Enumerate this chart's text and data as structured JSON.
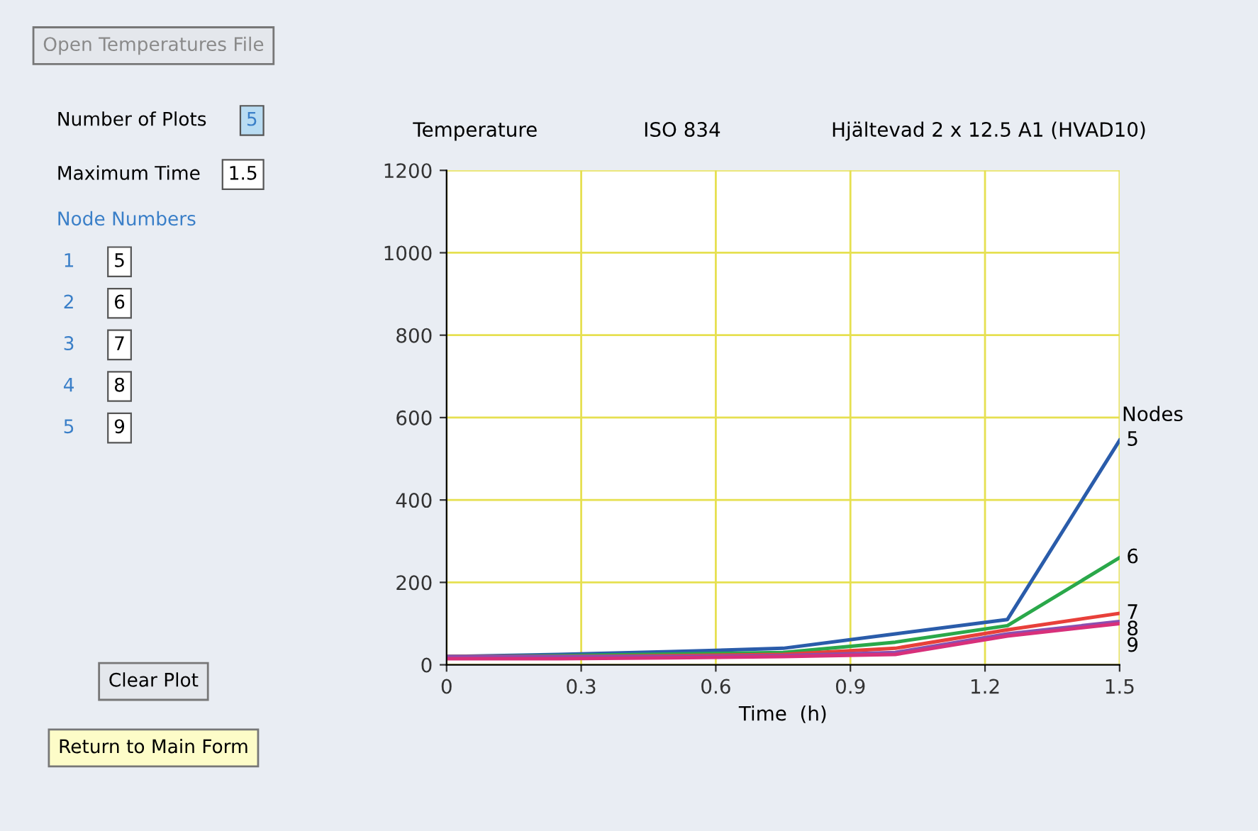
{
  "chart_data": {
    "type": "line",
    "title": "ISO 834",
    "subtitle": "Hjältevad 2 x 12.5 A1 (HVAD10)",
    "ylabel": "Temperature",
    "xlabel": "Time  (h)",
    "legend_title": "Nodes",
    "x": [
      0,
      0.25,
      0.5,
      0.75,
      1.0,
      1.25,
      1.5
    ],
    "series": [
      {
        "name": "5",
        "color": "#2a5caa",
        "values": [
          20,
          25,
          32,
          40,
          75,
          110,
          545
        ]
      },
      {
        "name": "6",
        "color": "#2aa84a",
        "values": [
          20,
          22,
          26,
          30,
          55,
          95,
          260
        ]
      },
      {
        "name": "7",
        "color": "#e8403a",
        "values": [
          20,
          20,
          22,
          25,
          40,
          85,
          125
        ]
      },
      {
        "name": "8",
        "color": "#8a4fb0",
        "values": [
          20,
          20,
          20,
          22,
          30,
          75,
          105
        ]
      },
      {
        "name": "9",
        "color": "#d8307a",
        "values": [
          15,
          15,
          17,
          20,
          25,
          70,
          100
        ]
      }
    ],
    "xlim": [
      0,
      1.5
    ],
    "xticks": [
      0,
      0.3,
      0.6,
      0.9,
      1.2,
      1.5
    ],
    "ylim": [
      0,
      1200
    ],
    "yticks": [
      0,
      200,
      400,
      600,
      800,
      1000,
      1200
    ],
    "grid": true,
    "annotations": [
      "Open Temperatures File",
      "Number of Plots",
      "5",
      "Maximum Time",
      "1.5",
      "Node Numbers",
      "1",
      "5",
      "2",
      "6",
      "3",
      "7",
      "4",
      "8",
      "5",
      "9",
      "Clear Plot",
      "Return to Main Form"
    ]
  }
}
